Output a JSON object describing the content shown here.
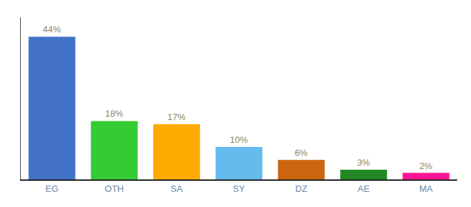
{
  "chart_data": {
    "type": "bar",
    "categories": [
      "EG",
      "OTH",
      "SA",
      "SY",
      "DZ",
      "AE",
      "MA"
    ],
    "values": [
      44,
      18,
      17,
      10,
      6,
      3,
      2
    ],
    "value_labels": [
      "44%",
      "18%",
      "17%",
      "10%",
      "6%",
      "3%",
      "2%"
    ],
    "data_labels": true,
    "colors": [
      "#4472c8",
      "#33cc33",
      "#ffaa00",
      "#66bbee",
      "#cc6611",
      "#228822",
      "#ff1493"
    ],
    "ylim": [
      0,
      50
    ],
    "grid": false,
    "tick_labels": "x"
  }
}
